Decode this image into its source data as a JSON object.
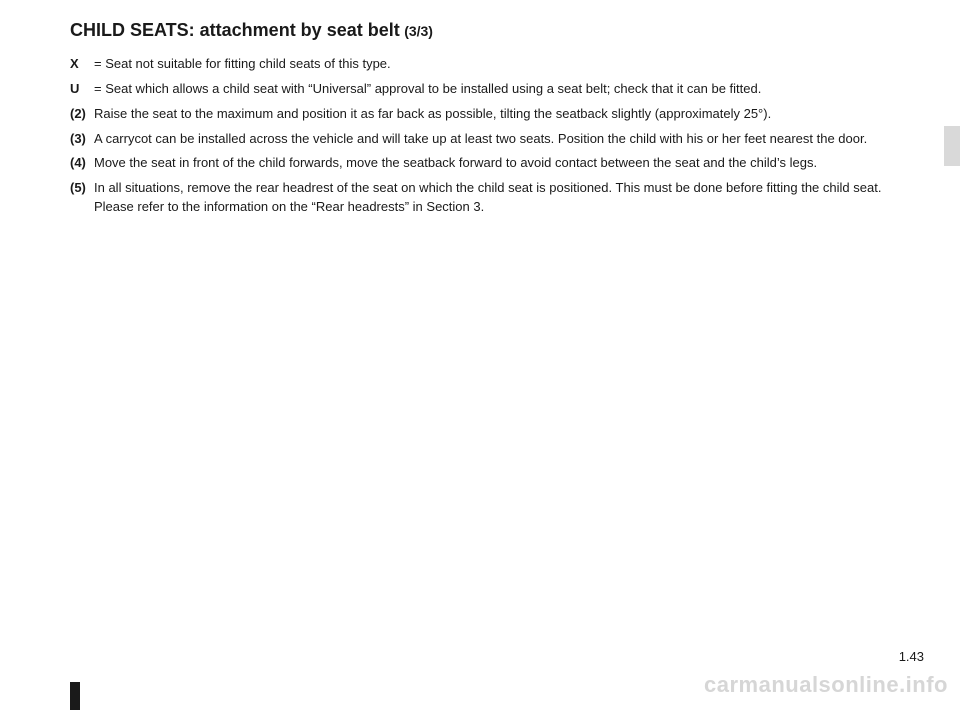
{
  "title": {
    "main": "CHILD SEATS: attachment by seat belt",
    "sub": "(3/3)"
  },
  "entries": [
    {
      "key": "X",
      "text": "= Seat not suitable for fitting child seats of this type."
    },
    {
      "key": "U",
      "text": "= Seat which allows a child seat with “Universal” approval to be installed using a seat belt; check that it can be fitted."
    },
    {
      "key": "(2)",
      "text": "Raise the seat to the maximum and position it as far back as possible, tilting the seatback slightly (approximately 25°)."
    },
    {
      "key": "(3)",
      "text": "A carrycot can be installed across the vehicle and will take up at least two seats. Position the child with his or her feet nearest the door."
    },
    {
      "key": "(4)",
      "text": "Move the seat in front of the child forwards, move the seatback forward to avoid contact between the seat and the child’s legs."
    },
    {
      "key": "(5)",
      "text": "In all situations, remove the rear headrest of the seat on which the child seat is positioned. This must be done before fitting the child seat. Please refer to the information on the “Rear headrests” in Section 3."
    }
  ],
  "pageNumber": "1.43",
  "watermark": "carmanualsonline.info"
}
